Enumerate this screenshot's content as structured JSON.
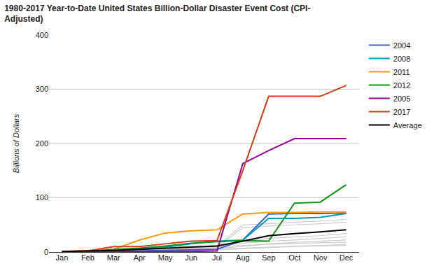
{
  "chart_data": {
    "type": "line",
    "title": "1980-2017 Year-to-Date United States Billion-Dollar Disaster Event Cost (CPI-\nAdjusted)",
    "y_label": "Billions of Dollars",
    "categories": [
      "Jan",
      "Feb",
      "Mar",
      "Apr",
      "May",
      "Jun",
      "Jul",
      "Aug",
      "Sep",
      "Oct",
      "Nov",
      "Dec"
    ],
    "ylim": [
      0,
      400
    ],
    "yticks": [
      0,
      100,
      200,
      300,
      400
    ],
    "grid": true,
    "legend": "right",
    "series": [
      {
        "color": "#cccccc",
        "values": [
          0,
          1,
          2,
          3,
          5,
          8,
          10,
          50,
          52,
          55,
          57,
          60
        ]
      },
      {
        "color": "#cccccc",
        "values": [
          0,
          0,
          1,
          2,
          4,
          6,
          8,
          45,
          48,
          50,
          52,
          55
        ]
      },
      {
        "color": "#cccccc",
        "values": [
          1,
          2,
          3,
          5,
          8,
          10,
          12,
          20,
          25,
          28,
          30,
          34
        ]
      },
      {
        "color": "#cccccc",
        "values": [
          0,
          1,
          1,
          2,
          3,
          5,
          7,
          10,
          15,
          18,
          20,
          22
        ]
      },
      {
        "color": "#cccccc",
        "values": [
          0,
          0,
          1,
          3,
          5,
          7,
          9,
          12,
          14,
          16,
          17,
          18
        ]
      },
      {
        "color": "#cccccc",
        "values": [
          1,
          1,
          2,
          4,
          6,
          8,
          12,
          16,
          20,
          22,
          25,
          28
        ]
      },
      {
        "color": "#cccccc",
        "values": [
          0,
          0,
          0,
          1,
          2,
          3,
          4,
          6,
          8,
          10,
          11,
          12
        ]
      },
      {
        "color": "#cccccc",
        "values": [
          0,
          1,
          2,
          3,
          4,
          5,
          6,
          7,
          9,
          11,
          12,
          14
        ]
      },
      {
        "name": "2004",
        "color": "#3366cc",
        "values": [
          0,
          0,
          1,
          2,
          3,
          4,
          5,
          22,
          70,
          71,
          71,
          72
        ]
      },
      {
        "name": "2008",
        "color": "#0099c6",
        "values": [
          1,
          2,
          4,
          6,
          9,
          15,
          20,
          22,
          62,
          62,
          64,
          71
        ]
      },
      {
        "name": "2011",
        "color": "#ff9900",
        "values": [
          1,
          3,
          5,
          22,
          35,
          39,
          41,
          70,
          73,
          73,
          74,
          74
        ]
      },
      {
        "name": "2012",
        "color": "#109618",
        "values": [
          0,
          1,
          5,
          7,
          11,
          16,
          19,
          21,
          20,
          90,
          92,
          124
        ]
      },
      {
        "name": "2005",
        "color": "#990099",
        "values": [
          0,
          0,
          1,
          1,
          1,
          1,
          2,
          163,
          187,
          209,
          209,
          209
        ]
      },
      {
        "name": "2017",
        "color": "#dc3912",
        "values": [
          1,
          2,
          10,
          10,
          15,
          20,
          21,
          150,
          287,
          287,
          287,
          307
        ]
      },
      {
        "name": "Average",
        "color": "#000000",
        "values": [
          1,
          2,
          3,
          5,
          7,
          9,
          11,
          20,
          30,
          34,
          37,
          41
        ]
      }
    ]
  }
}
